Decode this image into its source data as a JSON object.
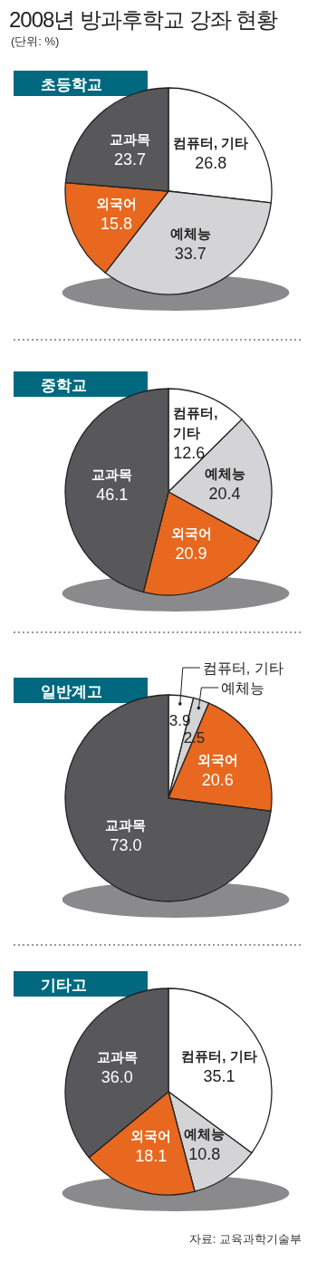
{
  "chart_data": [
    {
      "type": "pie",
      "title": "2008년 방과후학교 강좌 현황",
      "subtitle": "초등학교",
      "annotations": [
        "(단위: %)"
      ],
      "categories": [
        "컴퓨터, 기타",
        "예체능",
        "외국어",
        "교과목"
      ],
      "values": [
        26.8,
        33.7,
        15.8,
        23.7
      ],
      "value_labels": [
        "26.8",
        "33.7",
        "15.8",
        "23.7"
      ],
      "colors": [
        "#ffffff",
        "#d4d4d6",
        "#e8681f",
        "#58585a"
      ]
    },
    {
      "type": "pie",
      "subtitle": "중학교",
      "categories": [
        "컴퓨터, 기타",
        "예체능",
        "외국어",
        "교과목"
      ],
      "values": [
        12.6,
        20.4,
        20.9,
        46.1
      ],
      "value_labels": [
        "12.6",
        "20.4",
        "20.9",
        "46.1"
      ],
      "colors": [
        "#ffffff",
        "#d4d4d6",
        "#e8681f",
        "#58585a"
      ]
    },
    {
      "type": "pie",
      "subtitle": "일반계고",
      "categories": [
        "컴퓨터, 기타",
        "예체능",
        "외국어",
        "교과목"
      ],
      "values": [
        3.9,
        2.5,
        20.6,
        73.0
      ],
      "value_labels": [
        "3.9",
        "2.5",
        "20.6",
        "73.0"
      ],
      "colors": [
        "#ffffff",
        "#d4d4d6",
        "#e8681f",
        "#58585a"
      ]
    },
    {
      "type": "pie",
      "subtitle": "기타고",
      "annotations": [
        "자료: 교육과학기술부"
      ],
      "categories": [
        "컴퓨터, 기타",
        "예체능",
        "외국어",
        "교과목"
      ],
      "values": [
        35.1,
        10.8,
        18.1,
        36.0
      ],
      "value_labels": [
        "35.1",
        "10.8",
        "18.1",
        "36.0"
      ],
      "colors": [
        "#ffffff",
        "#d4d4d6",
        "#e8681f",
        "#58585a"
      ]
    }
  ]
}
